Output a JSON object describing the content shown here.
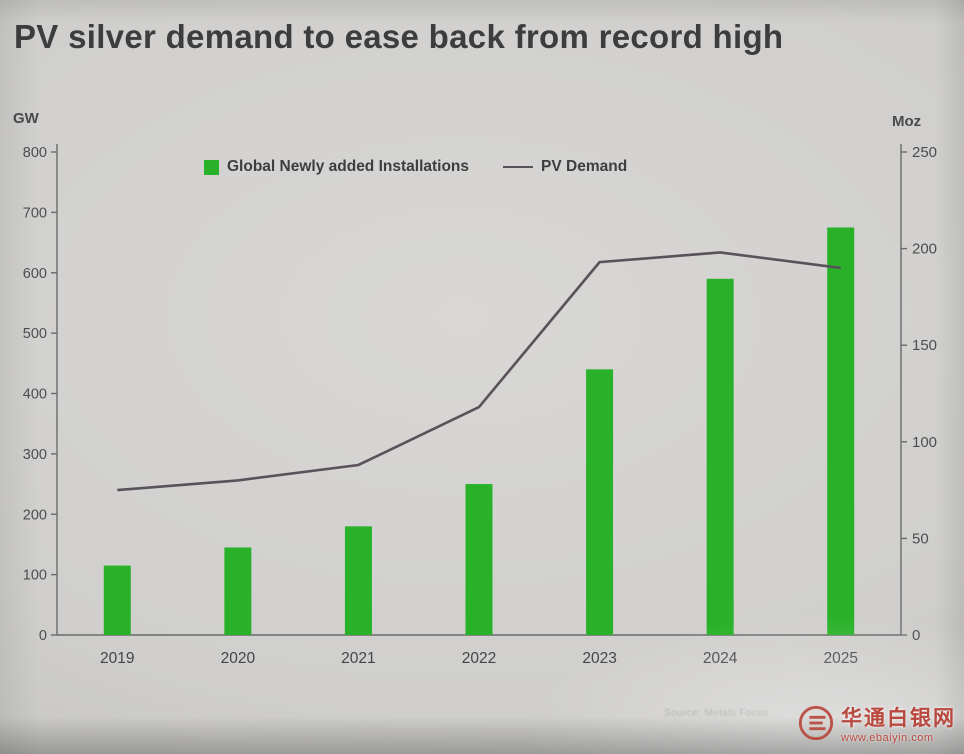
{
  "title": "PV silver demand to ease back from record high",
  "chart_data": {
    "type": "bar",
    "title": "PV silver demand to ease back from record high",
    "categories": [
      "2019",
      "2020",
      "2021",
      "2022",
      "2023",
      "2024",
      "2025"
    ],
    "series": [
      {
        "name": "Global Newly added Installations",
        "type": "bar",
        "axis": "left",
        "unit": "GW",
        "values": [
          115,
          145,
          180,
          250,
          440,
          590,
          675
        ],
        "color": "#29b229"
      },
      {
        "name": "PV Demand",
        "type": "line",
        "axis": "right",
        "unit": "Moz",
        "values": [
          75,
          80,
          88,
          118,
          193,
          198,
          190
        ],
        "color": "#59525a"
      }
    ],
    "left_axis": {
      "label": "GW",
      "min": 0,
      "max": 800,
      "ticks": [
        0,
        100,
        200,
        300,
        400,
        500,
        600,
        700,
        800
      ]
    },
    "right_axis": {
      "label": "Moz",
      "min": 0,
      "max": 250,
      "ticks": [
        0,
        50,
        100,
        150,
        200,
        250
      ]
    },
    "legend_position": "top",
    "grid": false
  },
  "source_note": "Source: Metals Focus",
  "watermark": {
    "name": "华通白银网",
    "url": "www.ebaiyin.com"
  }
}
